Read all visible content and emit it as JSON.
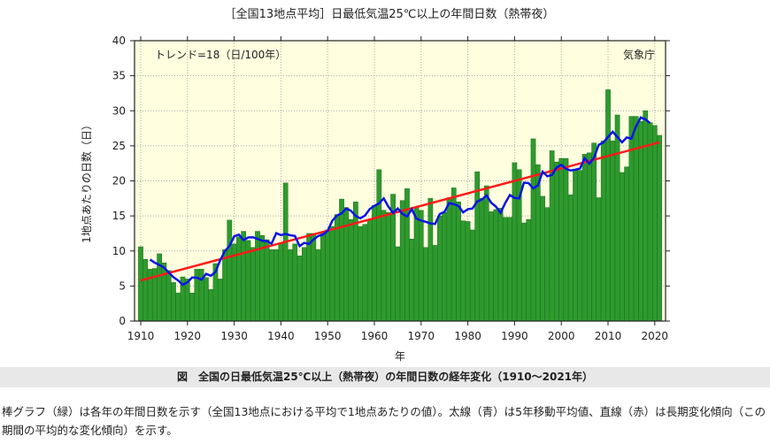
{
  "chart_data": {
    "type": "bar",
    "title": "［全国13地点平均］日最低気温25℃以上の年間日数（熱帯夜）",
    "xlabel": "年",
    "ylabel": "1地点あたりの日数（日）",
    "trend_label": "トレンド=18（日/100年）",
    "source_label": "気象庁",
    "ylim": [
      0,
      40
    ],
    "yticks": [
      0,
      5,
      10,
      15,
      20,
      25,
      30,
      35,
      40
    ],
    "xticks": [
      1910,
      1920,
      1930,
      1940,
      1950,
      1960,
      1970,
      1980,
      1990,
      2000,
      2010,
      2020
    ],
    "grid": true,
    "x_start": 1910,
    "values": [
      10.6,
      8.8,
      7.4,
      7.5,
      9.6,
      8.3,
      7.2,
      5.5,
      4.0,
      6.3,
      6.0,
      4.0,
      7.4,
      7.4,
      6.2,
      4.5,
      8.2,
      6.0,
      10.2,
      14.4,
      11.0,
      12.0,
      12.8,
      11.5,
      10.5,
      12.8,
      12.2,
      11.6,
      10.2,
      10.2,
      11.0,
      19.7,
      10.2,
      11.0,
      9.3,
      10.5,
      12.5,
      12.5,
      10.2,
      12.5,
      13.0,
      13.5,
      15.2,
      17.4,
      16.2,
      14.5,
      17.0,
      13.5,
      13.8,
      14.5,
      16.5,
      21.6,
      15.8,
      15.5,
      18.1,
      10.6,
      17.2,
      18.9,
      11.7,
      16.2,
      15.8,
      10.5,
      17.5,
      10.8,
      15.0,
      15.5,
      17.6,
      19.0,
      17.0,
      14.3,
      14.2,
      13.0,
      21.3,
      17.5,
      19.3,
      15.6,
      15.9,
      16.1,
      14.8,
      14.8,
      22.6,
      21.6,
      14.0,
      14.5,
      26.0,
      22.3,
      17.8,
      16.2,
      24.3,
      22.7,
      23.2,
      23.2,
      18.0,
      21.5,
      21.5,
      23.8,
      24.0,
      25.4,
      17.6,
      25.7,
      33.0,
      25.7,
      29.4,
      21.2,
      22.0,
      29.2,
      29.2,
      28.5,
      30.0,
      28.3,
      27.9,
      26.5
    ],
    "series": [
      {
        "kind": "bar",
        "color": "#2e9a2e"
      },
      {
        "kind": "moving_average_5yr",
        "color": "#0a14e6"
      },
      {
        "kind": "trend",
        "color": "#ff1a1a",
        "start_value": 5.8,
        "end_value": 25.5
      }
    ],
    "plot_background": "#ffffdf"
  },
  "caption": "図　全国の日最低気温25℃以上（熱帯夜）の年間日数の経年変化（1910〜2021年）",
  "note": "棒グラフ（緑）は各年の年間日数を示す（全国13地点における平均で1地点あたりの値）。太線（青）は5年移動平均値、直線（赤）は長期変化傾向（この期間の平均的な変化傾向）を示す。"
}
